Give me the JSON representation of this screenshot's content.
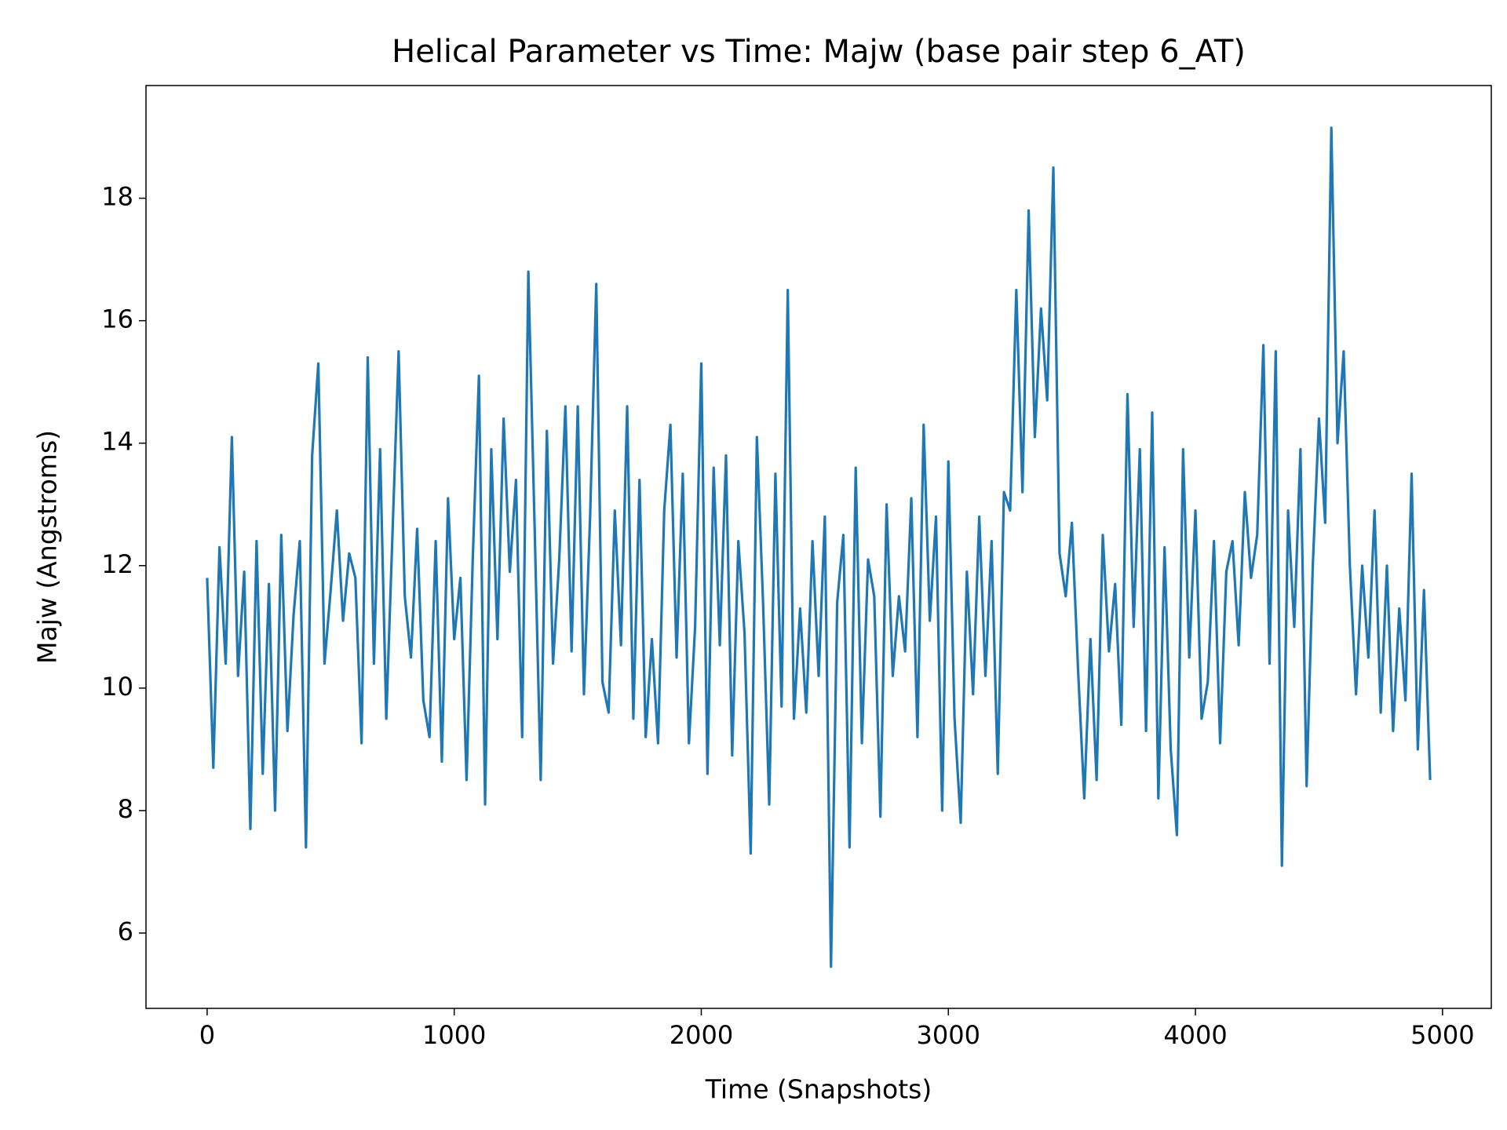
{
  "chart_data": {
    "type": "line",
    "title": "Helical Parameter vs Time: Majw (base pair step 6_AT)",
    "x_label": "Time (Snapshots)",
    "y_label": "Majw (Angstroms)",
    "xlim": [
      -247.5,
      5197.5
    ],
    "ylim": [
      4.77,
      19.84
    ],
    "xticks": [
      0,
      1000,
      2000,
      3000,
      4000,
      5000
    ],
    "yticks": [
      6,
      8,
      10,
      12,
      14,
      16,
      18
    ],
    "grid": false,
    "x": [
      0,
      25,
      50,
      75,
      100,
      125,
      150,
      175,
      200,
      225,
      250,
      275,
      300,
      325,
      350,
      375,
      400,
      425,
      450,
      475,
      500,
      525,
      550,
      575,
      600,
      625,
      650,
      675,
      700,
      725,
      750,
      775,
      800,
      825,
      850,
      875,
      900,
      925,
      950,
      975,
      1000,
      1025,
      1050,
      1075,
      1100,
      1125,
      1150,
      1175,
      1200,
      1225,
      1250,
      1275,
      1300,
      1325,
      1350,
      1375,
      1400,
      1425,
      1450,
      1475,
      1500,
      1525,
      1550,
      1575,
      1600,
      1625,
      1650,
      1675,
      1700,
      1725,
      1750,
      1775,
      1800,
      1825,
      1850,
      1875,
      1900,
      1925,
      1950,
      1975,
      2000,
      2025,
      2050,
      2075,
      2100,
      2125,
      2150,
      2175,
      2200,
      2225,
      2250,
      2275,
      2300,
      2325,
      2350,
      2375,
      2400,
      2425,
      2450,
      2475,
      2500,
      2525,
      2550,
      2575,
      2600,
      2625,
      2650,
      2675,
      2700,
      2725,
      2750,
      2775,
      2800,
      2825,
      2850,
      2875,
      2900,
      2925,
      2950,
      2975,
      3000,
      3025,
      3050,
      3075,
      3100,
      3125,
      3150,
      3175,
      3200,
      3225,
      3250,
      3275,
      3300,
      3325,
      3350,
      3375,
      3400,
      3425,
      3450,
      3475,
      3500,
      3525,
      3550,
      3575,
      3600,
      3625,
      3650,
      3675,
      3700,
      3725,
      3750,
      3775,
      3800,
      3825,
      3850,
      3875,
      3900,
      3925,
      3950,
      3975,
      4000,
      4025,
      4050,
      4075,
      4100,
      4125,
      4150,
      4175,
      4200,
      4225,
      4250,
      4275,
      4300,
      4325,
      4350,
      4375,
      4400,
      4425,
      4450,
      4475,
      4500,
      4525,
      4550,
      4575,
      4600,
      4625,
      4650,
      4675,
      4700,
      4725,
      4750,
      4775,
      4800,
      4825,
      4850,
      4875,
      4900,
      4925,
      4950
    ],
    "series": [
      {
        "name": "Majw",
        "color": "#1f77b4",
        "values": [
          11.8,
          8.7,
          12.3,
          10.4,
          14.1,
          10.2,
          11.9,
          7.7,
          12.4,
          8.6,
          11.7,
          8.0,
          12.5,
          9.3,
          11.2,
          12.4,
          7.4,
          13.8,
          15.3,
          10.4,
          11.6,
          12.9,
          11.1,
          12.2,
          11.8,
          9.1,
          15.4,
          10.4,
          13.9,
          9.5,
          12.5,
          15.5,
          11.5,
          10.5,
          12.6,
          9.8,
          9.2,
          12.4,
          8.8,
          13.1,
          10.8,
          11.8,
          8.5,
          12.1,
          15.1,
          8.1,
          13.9,
          10.8,
          14.4,
          11.9,
          13.4,
          9.2,
          16.8,
          12.7,
          8.5,
          14.2,
          10.4,
          12.1,
          14.6,
          10.6,
          14.6,
          9.9,
          12.8,
          16.6,
          10.1,
          9.6,
          12.9,
          10.7,
          14.6,
          9.5,
          13.4,
          9.2,
          10.8,
          9.1,
          12.9,
          14.3,
          10.5,
          13.5,
          9.1,
          11.0,
          15.3,
          8.6,
          13.6,
          10.7,
          13.8,
          8.9,
          12.4,
          10.9,
          7.3,
          14.1,
          11.4,
          8.1,
          13.5,
          9.7,
          16.5,
          9.5,
          11.3,
          9.6,
          12.4,
          10.2,
          12.8,
          5.45,
          11.4,
          12.5,
          7.4,
          13.6,
          9.1,
          12.1,
          11.5,
          7.9,
          13.0,
          10.2,
          11.5,
          10.6,
          13.1,
          9.2,
          14.3,
          11.1,
          12.8,
          8.0,
          13.7,
          9.5,
          7.8,
          11.9,
          9.9,
          12.8,
          10.2,
          12.4,
          8.6,
          13.2,
          12.9,
          16.5,
          13.2,
          17.8,
          14.1,
          16.2,
          14.7,
          18.5,
          12.2,
          11.5,
          12.7,
          10.3,
          8.2,
          10.8,
          8.5,
          12.5,
          10.6,
          11.7,
          9.4,
          14.8,
          11.0,
          13.9,
          9.3,
          14.5,
          8.2,
          12.3,
          9.0,
          7.6,
          13.9,
          10.5,
          12.9,
          9.5,
          10.1,
          12.4,
          9.1,
          11.9,
          12.4,
          10.7,
          13.2,
          11.8,
          12.5,
          15.6,
          10.4,
          15.5,
          7.1,
          12.9,
          11.0,
          13.9,
          8.4,
          12.0,
          14.4,
          12.7,
          19.15,
          14.0,
          15.5,
          12.0,
          9.9,
          12.0,
          10.5,
          12.9,
          9.6,
          12.0,
          9.3,
          11.3,
          9.8,
          13.5,
          9.0,
          11.6,
          8.5
        ]
      }
    ]
  }
}
